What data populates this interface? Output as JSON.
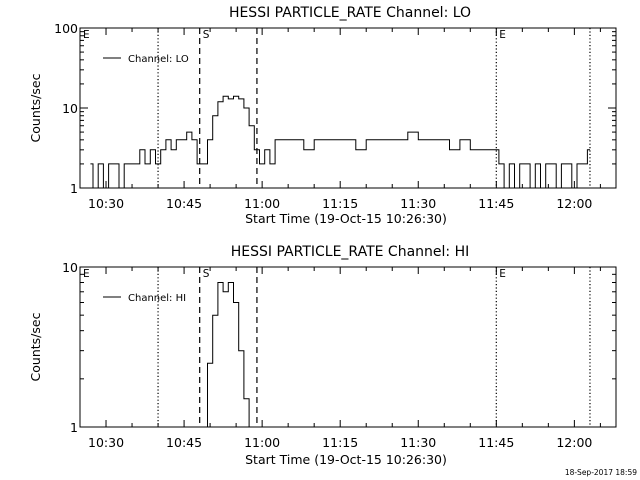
{
  "chart_data": [
    {
      "type": "line",
      "title": "HESSI PARTICLE_RATE Channel: LO",
      "xlabel": "Start Time (19-Oct-15 10:26:30)",
      "ylabel": "Counts/sec",
      "yscale": "log",
      "ylim": [
        1,
        100
      ],
      "y_ticks": [
        1,
        10,
        100
      ],
      "y_tick_labels": [
        "1",
        "10",
        "100"
      ],
      "x_ticks": [
        "10:30",
        "10:45",
        "11:00",
        "11:15",
        "11:30",
        "11:45",
        "12:00"
      ],
      "xlim": [
        "10:25",
        "12:08"
      ],
      "legend": {
        "position": "top-left",
        "entries": [
          "Channel: LO"
        ]
      },
      "markers": [
        {
          "label": "E",
          "time": "10:25",
          "style": "none"
        },
        {
          "label": "",
          "time": "10:40",
          "style": "dotted"
        },
        {
          "label": "S",
          "time": "10:48",
          "style": "dashed"
        },
        {
          "label": "",
          "time": "10:59",
          "style": "dashed"
        },
        {
          "label": "E",
          "time": "11:45",
          "style": "dotted"
        },
        {
          "label": "",
          "time": "12:03",
          "style": "dotted"
        }
      ],
      "series": [
        {
          "name": "Channel: LO",
          "x": [
            "10:27",
            "10:28",
            "10:29",
            "10:30",
            "10:31",
            "10:32",
            "10:33",
            "10:34",
            "10:35",
            "10:36",
            "10:37",
            "10:38",
            "10:39",
            "10:40",
            "10:41",
            "10:42",
            "10:43",
            "10:44",
            "10:45",
            "10:46",
            "10:47",
            "10:48",
            "10:49",
            "10:50",
            "10:51",
            "10:52",
            "10:53",
            "10:54",
            "10:55",
            "10:56",
            "10:57",
            "10:58",
            "10:59",
            "11:00",
            "11:01",
            "11:02",
            "11:03",
            "11:05",
            "11:07",
            "11:09",
            "11:11",
            "11:13",
            "11:15",
            "11:17",
            "11:19",
            "11:21",
            "11:23",
            "11:25",
            "11:27",
            "11:29",
            "11:31",
            "11:33",
            "11:35",
            "11:37",
            "11:39",
            "11:41",
            "11:43",
            "11:45",
            "11:46",
            "11:47",
            "11:48",
            "11:49",
            "11:50",
            "11:51",
            "11:52",
            "11:53",
            "11:54",
            "11:55",
            "11:56",
            "11:57",
            "11:58",
            "11:59",
            "12:00",
            "12:01",
            "12:02",
            "12:03"
          ],
          "y": [
            2,
            1,
            2,
            1,
            2,
            2,
            1,
            2,
            2,
            2,
            3,
            2,
            3,
            2,
            3,
            4,
            3,
            4,
            4,
            5,
            4,
            2,
            2,
            4,
            8,
            12,
            14,
            13,
            14,
            13,
            10,
            6,
            3,
            2,
            3,
            2,
            4,
            4,
            4,
            3,
            4,
            4,
            4,
            4,
            3,
            4,
            4,
            4,
            4,
            5,
            4,
            4,
            4,
            3,
            4,
            3,
            3,
            3,
            2,
            1,
            2,
            1,
            2,
            2,
            1,
            2,
            1,
            2,
            2,
            1,
            2,
            2,
            1,
            2,
            2,
            3
          ]
        }
      ]
    },
    {
      "type": "line",
      "title": "HESSI PARTICLE_RATE Channel: HI",
      "xlabel": "Start Time (19-Oct-15 10:26:30)",
      "ylabel": "Counts/sec",
      "yscale": "log",
      "ylim": [
        1,
        10
      ],
      "y_ticks": [
        1,
        10
      ],
      "y_tick_labels": [
        "1",
        "10"
      ],
      "x_ticks": [
        "10:30",
        "10:45",
        "11:00",
        "11:15",
        "11:30",
        "11:45",
        "12:00"
      ],
      "xlim": [
        "10:25",
        "12:08"
      ],
      "legend": {
        "position": "top-left",
        "entries": [
          "Channel: HI"
        ]
      },
      "markers": [
        {
          "label": "E",
          "time": "10:25",
          "style": "none"
        },
        {
          "label": "",
          "time": "10:40",
          "style": "dotted"
        },
        {
          "label": "S",
          "time": "10:48",
          "style": "dashed"
        },
        {
          "label": "",
          "time": "10:59",
          "style": "dashed"
        },
        {
          "label": "E",
          "time": "11:45",
          "style": "dotted"
        },
        {
          "label": "",
          "time": "12:03",
          "style": "dotted"
        }
      ],
      "series": [
        {
          "name": "Channel: HI",
          "x": [
            "10:49",
            "10:50",
            "10:51",
            "10:52",
            "10:53",
            "10:54",
            "10:55",
            "10:56",
            "10:57",
            "10:58"
          ],
          "y": [
            1,
            2.5,
            5,
            8,
            7,
            8,
            6,
            3,
            1.5,
            1
          ]
        }
      ]
    }
  ],
  "footer": {
    "timestamp": "18-Sep-2017 18:59"
  }
}
